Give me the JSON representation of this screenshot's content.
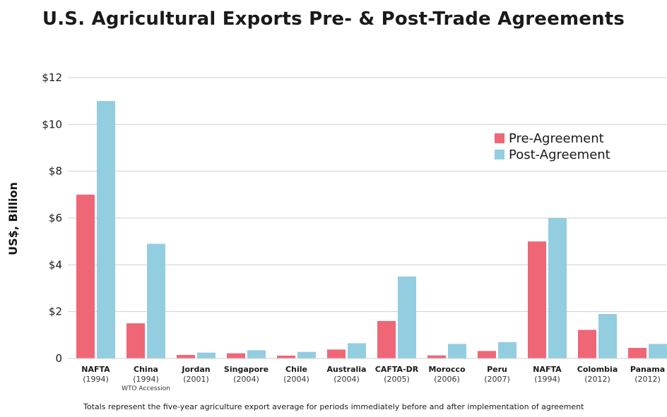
{
  "chart_data": {
    "type": "bar",
    "title": "U.S. Agricultural Exports Pre- & Post-Trade Agreements",
    "ylabel": "US$, Billion",
    "xlabel": "",
    "ylim": [
      0,
      12
    ],
    "yticks": [
      0,
      2,
      4,
      6,
      8,
      10,
      12
    ],
    "ytick_labels": [
      "0",
      "$2",
      "$4",
      "$6",
      "$8",
      "$10",
      "$12"
    ],
    "grid": true,
    "legend_position": "top-right",
    "categories": [
      {
        "name": "NAFTA",
        "year": "(1994)",
        "note": ""
      },
      {
        "name": "China",
        "year": "(1994)",
        "note": "WTO Accession"
      },
      {
        "name": "Jordan",
        "year": "(2001)",
        "note": ""
      },
      {
        "name": "Singapore",
        "year": "(2004)",
        "note": ""
      },
      {
        "name": "Chile",
        "year": "(2004)",
        "note": ""
      },
      {
        "name": "Australia",
        "year": "(2004)",
        "note": ""
      },
      {
        "name": "CAFTA-DR",
        "year": "(2005)",
        "note": ""
      },
      {
        "name": "Morocco",
        "year": "(2006)",
        "note": ""
      },
      {
        "name": "Peru",
        "year": "(2007)",
        "note": ""
      },
      {
        "name": "NAFTA",
        "year": "(1994)",
        "note": ""
      },
      {
        "name": "Colombia",
        "year": "(2012)",
        "note": ""
      },
      {
        "name": "Panama",
        "year": "(2012)",
        "note": ""
      }
    ],
    "series": [
      {
        "name": "Pre-Agreement",
        "color": "#ef6677",
        "values": [
          7.0,
          1.5,
          0.15,
          0.22,
          0.12,
          0.38,
          1.6,
          0.13,
          0.32,
          5.0,
          1.22,
          0.45
        ]
      },
      {
        "name": "Post-Agreement",
        "color": "#93cde0",
        "values": [
          11.0,
          4.9,
          0.25,
          0.35,
          0.28,
          0.65,
          3.5,
          0.62,
          0.7,
          6.0,
          1.9,
          0.62
        ]
      }
    ],
    "footnote": "Totals represent the five-year agriculture export average for periods immediately before and after implementation of agreement"
  }
}
